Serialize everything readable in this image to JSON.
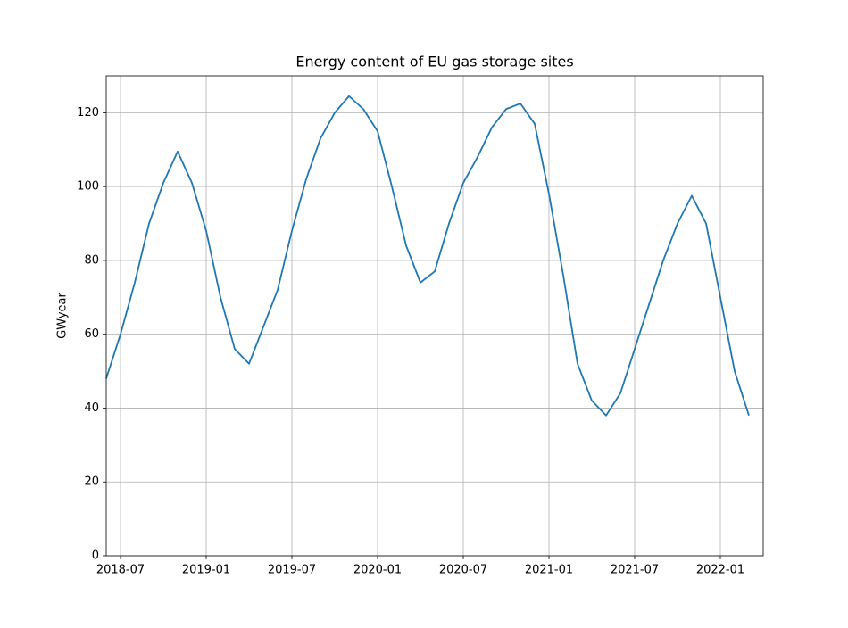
{
  "chart_data": {
    "type": "line",
    "title": "Energy content of EU gas storage sites",
    "ylabel": "GWyear",
    "x": [
      "2018-06",
      "2018-07",
      "2018-08",
      "2018-09",
      "2018-10",
      "2018-11",
      "2018-12",
      "2019-01",
      "2019-02",
      "2019-03",
      "2019-04",
      "2019-05",
      "2019-06",
      "2019-07",
      "2019-08",
      "2019-09",
      "2019-10",
      "2019-11",
      "2019-12",
      "2020-01",
      "2020-02",
      "2020-03",
      "2020-04",
      "2020-05",
      "2020-06",
      "2020-07",
      "2020-08",
      "2020-09",
      "2020-10",
      "2020-11",
      "2020-12",
      "2021-01",
      "2021-02",
      "2021-03",
      "2021-04",
      "2021-05",
      "2021-06",
      "2021-07",
      "2021-08",
      "2021-09",
      "2021-10",
      "2021-11",
      "2021-12",
      "2022-01",
      "2022-02",
      "2022-03"
    ],
    "series": [
      {
        "name": "GWyear",
        "color": "#1f77b4",
        "values": [
          48,
          60,
          74,
          90,
          101,
          109.5,
          101,
          88,
          70,
          56,
          52,
          62,
          72,
          88,
          102,
          113,
          120,
          124.5,
          121,
          115,
          100,
          84,
          74,
          77,
          90,
          101,
          108,
          116,
          121,
          122.5,
          117,
          98,
          76,
          52,
          42,
          38,
          44,
          56,
          68,
          80,
          90,
          97.5,
          90,
          70,
          50,
          38
        ]
      }
    ],
    "xlim": [
      "2018-06",
      "2022-04"
    ],
    "xticks": [
      "2018-07",
      "2019-01",
      "2019-07",
      "2020-01",
      "2020-07",
      "2021-01",
      "2021-07",
      "2022-01"
    ],
    "ylim": [
      0,
      130
    ],
    "yticks": [
      0,
      20,
      40,
      60,
      80,
      100,
      120
    ],
    "grid": true
  }
}
